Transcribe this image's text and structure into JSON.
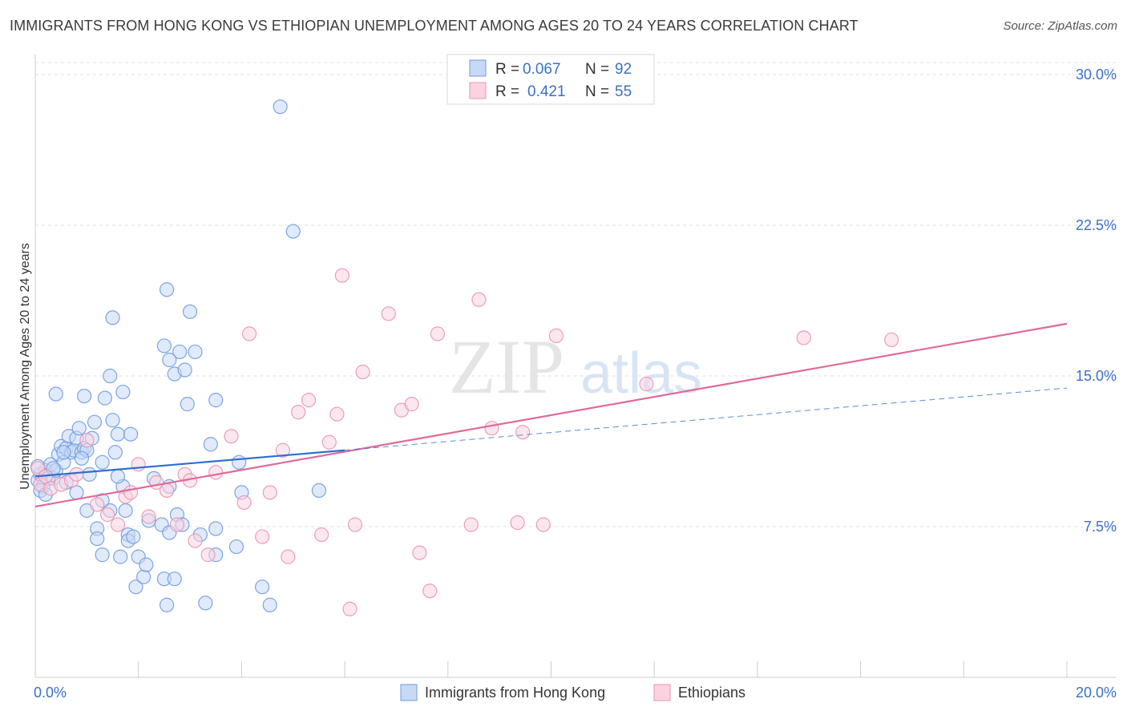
{
  "title": "IMMIGRANTS FROM HONG KONG VS ETHIOPIAN UNEMPLOYMENT AMONG AGES 20 TO 24 YEARS CORRELATION CHART",
  "source": "Source: ZipAtlas.com",
  "watermark": {
    "zip": "ZIP",
    "atlas": "atlas"
  },
  "legend_top": [
    {
      "r_label": "R =",
      "r_value": "0.067",
      "n_label": "N =",
      "n_value": "92"
    },
    {
      "r_label": "R =",
      "r_value": "0.421",
      "n_label": "N =",
      "n_value": "55"
    }
  ],
  "chart_data": {
    "type": "scatter",
    "title": "IMMIGRANTS FROM HONG KONG VS ETHIOPIAN UNEMPLOYMENT AMONG AGES 20 TO 24 YEARS CORRELATION CHART",
    "xlabel": "",
    "ylabel": "Unemployment Among Ages 20 to 24 years",
    "xlim": [
      0,
      20
    ],
    "ylim": [
      0,
      31
    ],
    "x_tick_labels": [
      "0.0%",
      "20.0%"
    ],
    "y_ticks": [
      7.5,
      15.0,
      22.5,
      30.0
    ],
    "y_tick_labels": [
      "7.5%",
      "15.0%",
      "22.5%",
      "30.0%"
    ],
    "grid": true,
    "legend": "bottom-center",
    "colors": {
      "hk": "#6f9be0",
      "hk_line": "#2e6fd0",
      "eth": "#ea94b4",
      "eth_line": "#e06a98",
      "axis_text": "#3a70c9"
    },
    "series": [
      {
        "name": "Immigrants from Hong Kong",
        "key": "hk",
        "r": 0.067,
        "n": 92,
        "trend": {
          "x": [
            0.0,
            6.0
          ],
          "y": [
            10.0,
            11.3
          ],
          "dashed_x": [
            6.0,
            20.0
          ],
          "dashed_y": [
            11.3,
            14.4
          ]
        },
        "points": [
          [
            0.05,
            9.8
          ],
          [
            0.1,
            10.1
          ],
          [
            0.15,
            9.5
          ],
          [
            0.2,
            10.3
          ],
          [
            0.25,
            9.9
          ],
          [
            0.05,
            10.5
          ],
          [
            0.3,
            10.6
          ],
          [
            0.1,
            9.3
          ],
          [
            0.35,
            9.9
          ],
          [
            0.4,
            10.3
          ],
          [
            0.45,
            11.1
          ],
          [
            0.5,
            11.5
          ],
          [
            0.55,
            10.7
          ],
          [
            0.6,
            11.4
          ],
          [
            0.65,
            12.0
          ],
          [
            0.7,
            11.2
          ],
          [
            0.75,
            11.3
          ],
          [
            0.8,
            11.9
          ],
          [
            0.85,
            12.4
          ],
          [
            0.9,
            11.2
          ],
          [
            0.95,
            11.4
          ],
          [
            1.0,
            11.3
          ],
          [
            1.05,
            10.1
          ],
          [
            1.1,
            11.9
          ],
          [
            1.15,
            12.7
          ],
          [
            1.3,
            10.7
          ],
          [
            1.35,
            13.9
          ],
          [
            1.45,
            15.0
          ],
          [
            1.5,
            12.8
          ],
          [
            1.55,
            11.2
          ],
          [
            1.6,
            12.1
          ],
          [
            1.7,
            14.2
          ],
          [
            1.85,
            12.1
          ],
          [
            0.4,
            14.1
          ],
          [
            0.95,
            14.0
          ],
          [
            1.5,
            17.9
          ],
          [
            0.2,
            9.1
          ],
          [
            0.8,
            9.2
          ],
          [
            0.6,
            9.7
          ],
          [
            1.0,
            8.3
          ],
          [
            1.2,
            7.4
          ],
          [
            1.2,
            6.9
          ],
          [
            1.3,
            6.1
          ],
          [
            1.45,
            8.3
          ],
          [
            1.65,
            6.0
          ],
          [
            1.75,
            8.3
          ],
          [
            1.8,
            7.1
          ],
          [
            1.8,
            6.8
          ],
          [
            1.9,
            7.0
          ],
          [
            1.95,
            4.5
          ],
          [
            2.0,
            6.0
          ],
          [
            2.1,
            5.0
          ],
          [
            2.15,
            5.6
          ],
          [
            2.2,
            7.8
          ],
          [
            2.3,
            9.9
          ],
          [
            2.45,
            7.6
          ],
          [
            2.5,
            4.9
          ],
          [
            2.55,
            3.6
          ],
          [
            2.6,
            7.2
          ],
          [
            2.6,
            9.5
          ],
          [
            2.7,
            4.9
          ],
          [
            2.7,
            15.1
          ],
          [
            2.75,
            8.1
          ],
          [
            2.8,
            16.2
          ],
          [
            2.85,
            7.6
          ],
          [
            2.9,
            15.3
          ],
          [
            2.95,
            13.6
          ],
          [
            3.0,
            18.2
          ],
          [
            3.1,
            16.2
          ],
          [
            3.2,
            7.1
          ],
          [
            3.3,
            3.7
          ],
          [
            3.4,
            11.6
          ],
          [
            3.5,
            7.4
          ],
          [
            3.5,
            6.1
          ],
          [
            3.5,
            13.8
          ],
          [
            3.9,
            6.5
          ],
          [
            3.95,
            10.7
          ],
          [
            4.0,
            9.2
          ],
          [
            4.4,
            4.5
          ],
          [
            4.55,
            3.6
          ],
          [
            4.75,
            28.4
          ],
          [
            5.0,
            22.2
          ],
          [
            5.5,
            9.3
          ],
          [
            2.5,
            16.5
          ],
          [
            2.55,
            19.3
          ],
          [
            2.6,
            15.8
          ],
          [
            0.55,
            11.2
          ],
          [
            0.35,
            10.4
          ],
          [
            1.3,
            8.8
          ],
          [
            1.7,
            9.5
          ],
          [
            0.9,
            10.9
          ],
          [
            1.6,
            10.0
          ]
        ]
      },
      {
        "name": "Ethiopians",
        "key": "eth",
        "r": 0.421,
        "n": 55,
        "trend": {
          "x": [
            0.0,
            20.0
          ],
          "y": [
            8.5,
            17.6
          ]
        },
        "points": [
          [
            0.05,
            10.4
          ],
          [
            0.1,
            9.6
          ],
          [
            0.2,
            10.0
          ],
          [
            0.3,
            9.4
          ],
          [
            0.5,
            9.6
          ],
          [
            0.7,
            9.8
          ],
          [
            0.8,
            10.1
          ],
          [
            1.0,
            11.8
          ],
          [
            1.2,
            8.6
          ],
          [
            1.4,
            8.1
          ],
          [
            1.6,
            7.6
          ],
          [
            1.75,
            9.0
          ],
          [
            1.85,
            9.2
          ],
          [
            2.0,
            10.6
          ],
          [
            2.2,
            8.0
          ],
          [
            2.35,
            9.7
          ],
          [
            2.55,
            9.3
          ],
          [
            2.75,
            7.6
          ],
          [
            2.9,
            10.1
          ],
          [
            3.0,
            9.8
          ],
          [
            3.1,
            6.8
          ],
          [
            3.35,
            6.1
          ],
          [
            3.5,
            10.2
          ],
          [
            3.8,
            12.0
          ],
          [
            4.05,
            8.7
          ],
          [
            4.15,
            17.1
          ],
          [
            4.4,
            7.0
          ],
          [
            4.55,
            9.2
          ],
          [
            4.8,
            11.3
          ],
          [
            4.9,
            6.0
          ],
          [
            5.1,
            13.2
          ],
          [
            5.3,
            13.8
          ],
          [
            5.55,
            7.1
          ],
          [
            5.7,
            11.7
          ],
          [
            5.85,
            13.1
          ],
          [
            5.95,
            20.0
          ],
          [
            6.1,
            3.4
          ],
          [
            6.2,
            7.6
          ],
          [
            6.35,
            15.2
          ],
          [
            6.85,
            18.1
          ],
          [
            7.1,
            13.3
          ],
          [
            7.3,
            13.6
          ],
          [
            7.45,
            6.2
          ],
          [
            7.65,
            4.3
          ],
          [
            7.8,
            17.1
          ],
          [
            8.45,
            7.6
          ],
          [
            8.6,
            18.8
          ],
          [
            8.85,
            12.4
          ],
          [
            9.35,
            7.7
          ],
          [
            9.45,
            12.2
          ],
          [
            9.85,
            7.6
          ],
          [
            10.1,
            17.0
          ],
          [
            11.85,
            14.6
          ],
          [
            14.9,
            16.9
          ],
          [
            16.6,
            16.8
          ]
        ]
      }
    ]
  }
}
